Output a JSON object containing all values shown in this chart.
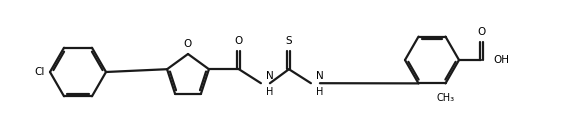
{
  "background_color": "#ffffff",
  "line_color": "#1a1a1a",
  "line_width": 1.6,
  "figsize": [
    5.67,
    1.37
  ],
  "dpi": 100,
  "cl_label": "Cl",
  "o_label": "O",
  "s_label": "S",
  "nh_label": "NH",
  "h_label": "H",
  "oh_label": "OH",
  "ch3_label": "CH₃",
  "font_size": 7.5
}
